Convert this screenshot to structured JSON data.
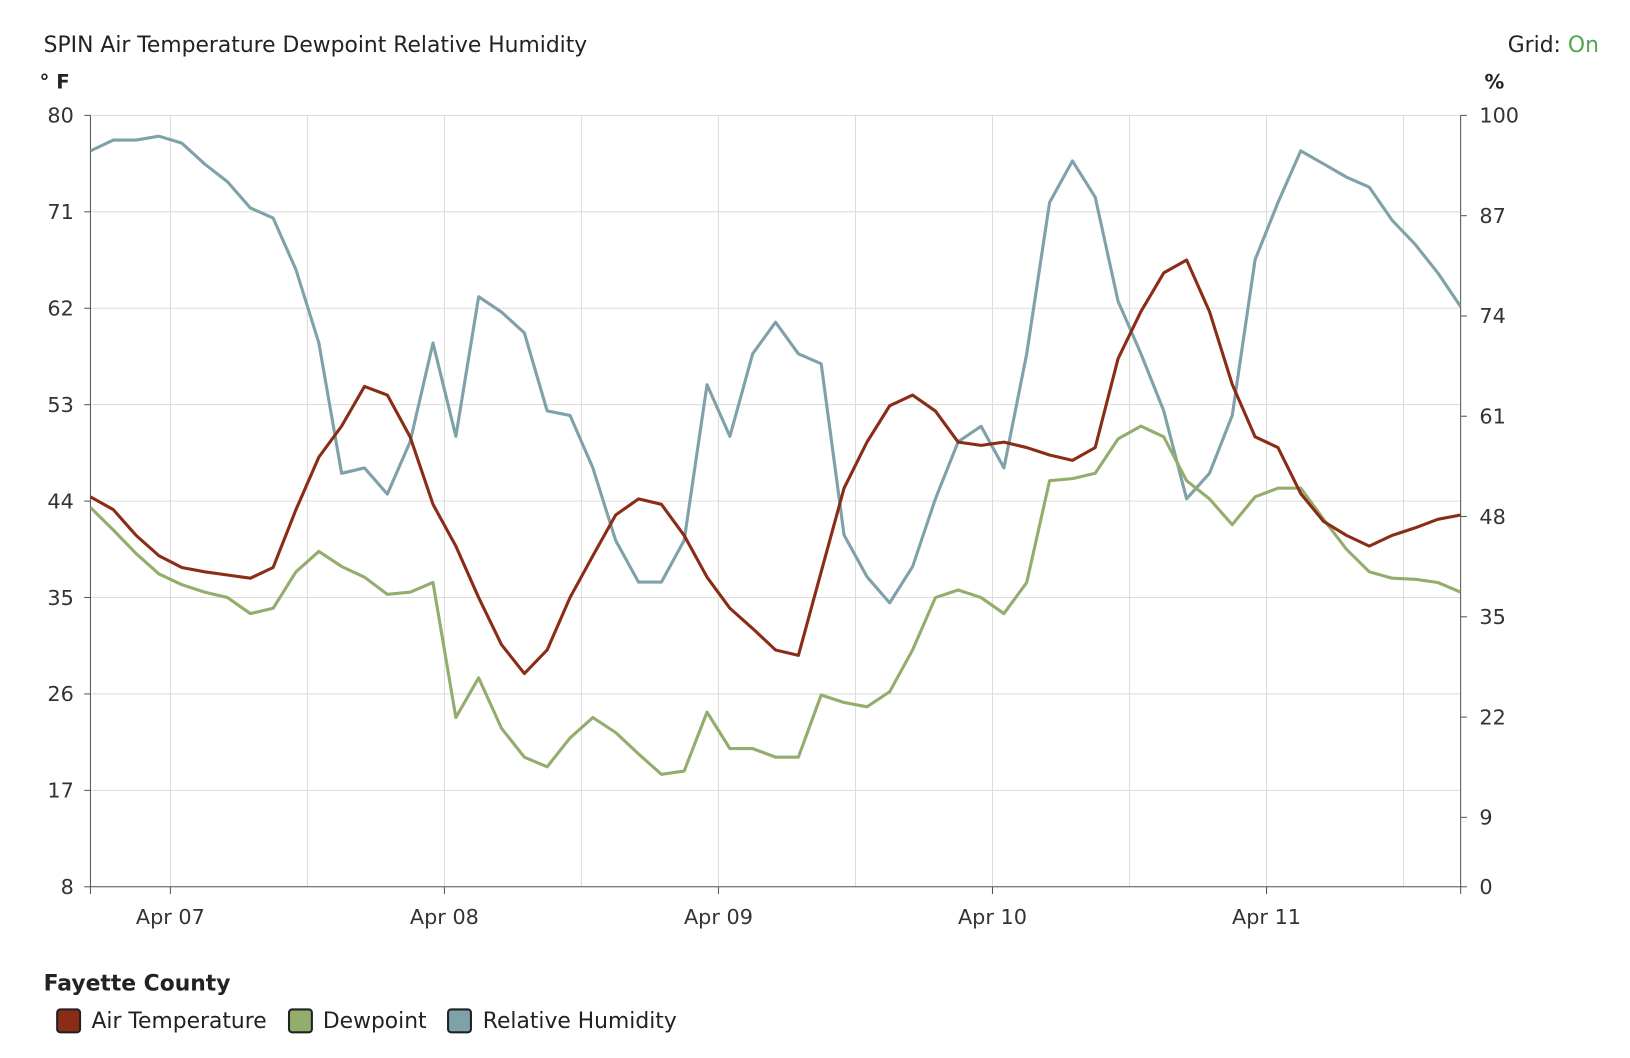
{
  "header": {
    "title": "SPIN Air Temperature Dewpoint Relative Humidity",
    "grid_label": "Grid:",
    "grid_value": "On"
  },
  "legend": {
    "title": "Fayette County"
  },
  "colors": {
    "air_temperature": "#8b2d16",
    "dewpoint": "#93ad6c",
    "relative_humidity": "#7fa1a9",
    "grid_on": "#4ea64e"
  },
  "chart_data": {
    "type": "line",
    "title": "SPIN Air Temperature Dewpoint Relative Humidity",
    "grid": true,
    "legend_placement": "bottom-left",
    "x_range": [
      "Apr 06 17:00",
      "Apr 11 17:00"
    ],
    "x_ticks": [
      "Apr 07",
      "Apr 08",
      "Apr 09",
      "Apr 10",
      "Apr 11"
    ],
    "y_left": {
      "label": "° F",
      "range": [
        8,
        80
      ],
      "ticks": [
        80,
        71,
        62,
        53,
        44,
        35,
        26,
        17,
        8
      ]
    },
    "y_right": {
      "label": "%",
      "range": [
        0,
        100
      ],
      "ticks": [
        100,
        87,
        74,
        61,
        48,
        35,
        22,
        9,
        0
      ]
    },
    "x": [
      "Apr 06 17:00",
      "Apr 06 19:00",
      "Apr 06 21:00",
      "Apr 06 23:00",
      "Apr 07 01:00",
      "Apr 07 03:00",
      "Apr 07 05:00",
      "Apr 07 07:00",
      "Apr 07 09:00",
      "Apr 07 11:00",
      "Apr 07 13:00",
      "Apr 07 15:00",
      "Apr 07 17:00",
      "Apr 07 19:00",
      "Apr 07 21:00",
      "Apr 07 23:00",
      "Apr 08 01:00",
      "Apr 08 03:00",
      "Apr 08 05:00",
      "Apr 08 07:00",
      "Apr 08 09:00",
      "Apr 08 11:00",
      "Apr 08 13:00",
      "Apr 08 15:00",
      "Apr 08 17:00",
      "Apr 08 19:00",
      "Apr 08 21:00",
      "Apr 08 23:00",
      "Apr 09 01:00",
      "Apr 09 03:00",
      "Apr 09 05:00",
      "Apr 09 07:00",
      "Apr 09 09:00",
      "Apr 09 11:00",
      "Apr 09 13:00",
      "Apr 09 15:00",
      "Apr 09 17:00",
      "Apr 09 19:00",
      "Apr 09 21:00",
      "Apr 09 23:00",
      "Apr 10 01:00",
      "Apr 10 03:00",
      "Apr 10 05:00",
      "Apr 10 07:00",
      "Apr 10 09:00",
      "Apr 10 11:00",
      "Apr 10 13:00",
      "Apr 10 15:00",
      "Apr 10 17:00",
      "Apr 10 19:00",
      "Apr 10 21:00",
      "Apr 10 23:00",
      "Apr 11 01:00",
      "Apr 11 03:00",
      "Apr 11 05:00",
      "Apr 11 07:00",
      "Apr 11 09:00",
      "Apr 11 11:00",
      "Apr 11 13:00",
      "Apr 11 15:00",
      "Apr 11 17:00"
    ],
    "series": [
      {
        "name": "Air Temperature",
        "axis": "left",
        "color": "#8b2d16",
        "values": [
          44.4,
          43.2,
          40.8,
          38.9,
          37.8,
          37.4,
          37.1,
          36.8,
          37.8,
          43.2,
          48.1,
          51.0,
          54.7,
          53.9,
          50.0,
          43.7,
          39.8,
          35.0,
          30.6,
          27.9,
          30.1,
          35.0,
          38.9,
          42.7,
          44.2,
          43.7,
          40.8,
          36.9,
          34.0,
          32.1,
          30.1,
          29.6,
          37.4,
          45.2,
          49.5,
          52.9,
          53.9,
          52.4,
          49.5,
          49.2,
          49.5,
          49.0,
          48.3,
          47.8,
          49.0,
          57.3,
          61.7,
          65.3,
          66.5,
          61.7,
          54.9,
          50.0,
          49.0,
          44.7,
          42.1,
          40.8,
          39.8,
          40.8,
          41.5,
          42.3,
          42.7
        ]
      },
      {
        "name": "Dewpoint",
        "axis": "left",
        "color": "#93ad6c",
        "values": [
          43.4,
          41.3,
          39.1,
          37.2,
          36.2,
          35.5,
          35.0,
          33.5,
          34.0,
          37.4,
          39.3,
          37.9,
          36.9,
          35.3,
          35.5,
          36.4,
          23.8,
          27.5,
          22.8,
          20.1,
          19.2,
          21.9,
          23.8,
          22.4,
          20.4,
          18.5,
          18.8,
          24.3,
          20.9,
          20.9,
          20.1,
          20.1,
          25.9,
          25.2,
          24.8,
          26.2,
          30.1,
          35.0,
          35.7,
          35.0,
          33.5,
          36.4,
          45.9,
          46.1,
          46.6,
          49.8,
          51.0,
          50.0,
          45.9,
          44.2,
          41.8,
          44.4,
          45.2,
          45.2,
          42.3,
          39.5,
          37.4,
          36.8,
          36.7,
          36.4,
          35.5
        ]
      },
      {
        "name": "Relative Humidity",
        "axis": "right",
        "color": "#7fa1a9",
        "values": [
          95.4,
          96.8,
          96.8,
          97.3,
          96.4,
          93.7,
          91.4,
          88.0,
          86.7,
          80.0,
          70.5,
          53.6,
          54.3,
          50.9,
          57.7,
          70.5,
          58.4,
          76.5,
          74.5,
          71.8,
          61.7,
          61.1,
          54.3,
          44.9,
          39.5,
          39.5,
          44.9,
          65.1,
          58.4,
          69.1,
          73.2,
          69.1,
          67.8,
          45.6,
          40.2,
          36.8,
          41.5,
          50.3,
          57.7,
          59.7,
          54.3,
          69.1,
          88.7,
          94.1,
          89.4,
          75.9,
          69.1,
          61.7,
          50.3,
          53.6,
          61.1,
          81.3,
          88.7,
          95.4,
          93.7,
          92.0,
          90.7,
          86.4,
          83.3,
          79.6,
          75.2
        ]
      }
    ]
  }
}
